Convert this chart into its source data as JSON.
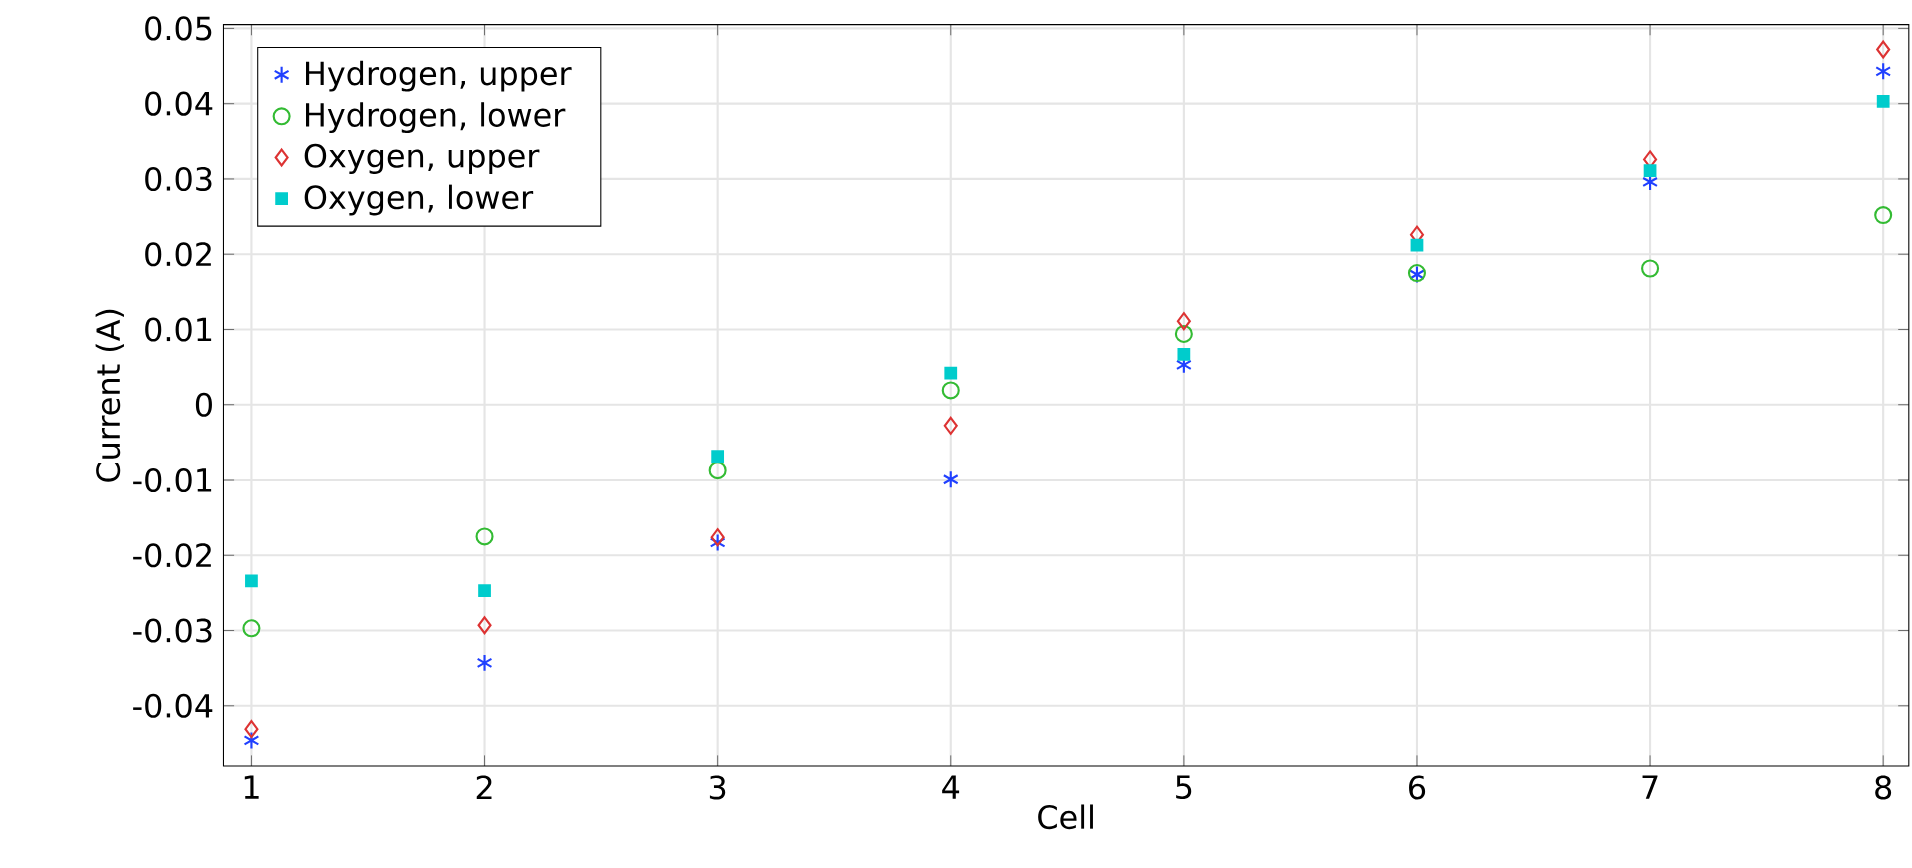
{
  "chart_data": {
    "type": "scatter",
    "xlabel": "Cell",
    "ylabel": "Current (A)",
    "x": [
      1,
      2,
      3,
      4,
      5,
      6,
      7,
      8
    ],
    "xlim": [
      0.88,
      8.11
    ],
    "ylim": [
      -0.048,
      0.0505
    ],
    "xticks": [
      1,
      2,
      3,
      4,
      5,
      6,
      7,
      8
    ],
    "yticks": [
      -0.04,
      -0.03,
      -0.02,
      -0.01,
      0,
      0.01,
      0.02,
      0.03,
      0.04,
      0.05
    ],
    "grid": true,
    "legend": "top left",
    "series": [
      {
        "name": "Hydrogen, upper",
        "color": "#2040ff",
        "marker": "cross",
        "values": [
          -0.0446,
          -0.0343,
          -0.0183,
          -0.0099,
          0.0053,
          0.0173,
          0.0296,
          0.0443
        ]
      },
      {
        "name": "Hydrogen, lower",
        "color": "#33bb33",
        "marker": "circle",
        "values": [
          -0.0297,
          -0.0175,
          -0.0087,
          0.0019,
          0.0094,
          0.0175,
          0.0181,
          0.0252
        ]
      },
      {
        "name": "Oxygen, upper",
        "color": "#dd3333",
        "marker": "diamond",
        "values": [
          -0.0431,
          -0.0293,
          -0.0176,
          -0.0028,
          0.0111,
          0.0226,
          0.0326,
          0.0472
        ]
      },
      {
        "name": "Oxygen, lower",
        "color": "#00cccc",
        "marker": "square",
        "values": [
          -0.0234,
          -0.0247,
          -0.0069,
          0.0042,
          0.0067,
          0.0212,
          0.0311,
          0.0403
        ]
      }
    ]
  }
}
